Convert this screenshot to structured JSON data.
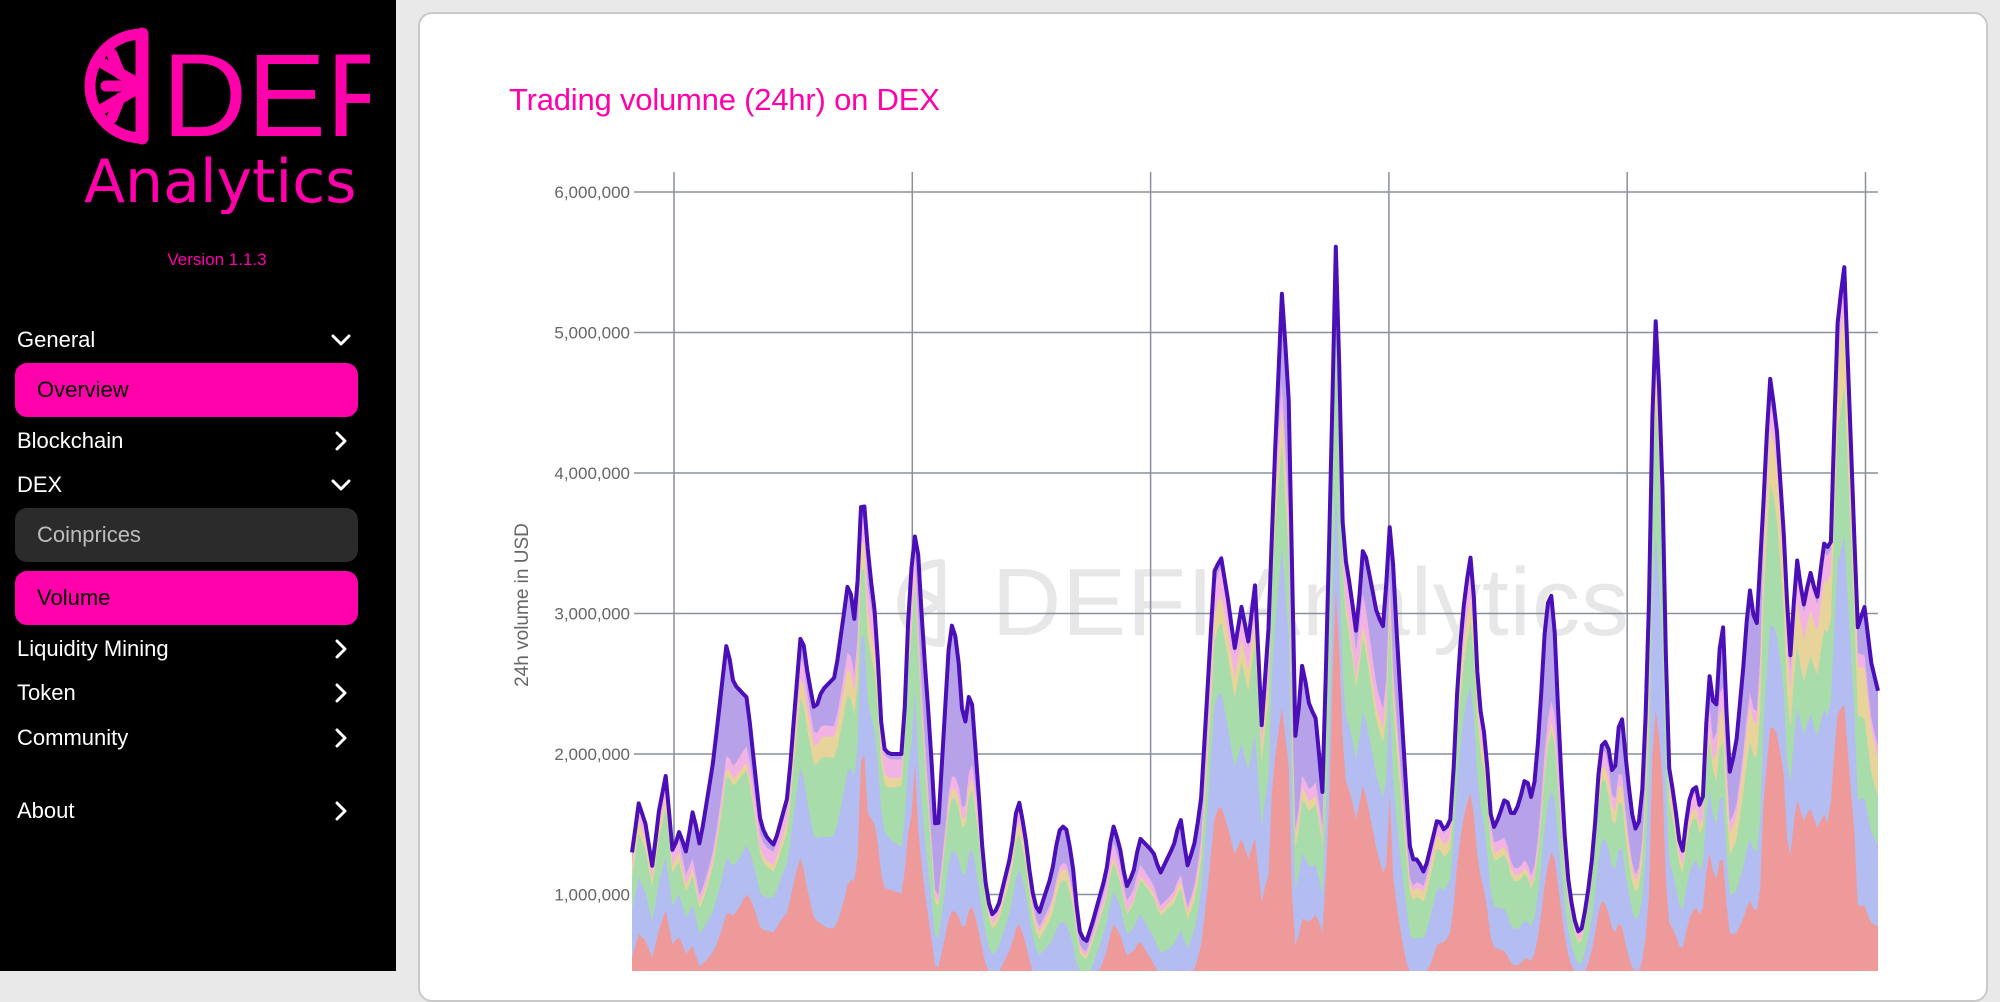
{
  "brand": {
    "logo_text_top": "DEFI",
    "logo_text_bottom": "Analytics",
    "version": "Version 1.1.3",
    "accent": "#ff00aa"
  },
  "nav": {
    "general": {
      "label": "General",
      "icon": "chevron-down-icon"
    },
    "overview": {
      "label": "Overview"
    },
    "blockchain": {
      "label": "Blockchain",
      "icon": "chevron-right-icon"
    },
    "dex": {
      "label": "DEX",
      "icon": "chevron-down-icon"
    },
    "coinprices": {
      "label": "Coinprices"
    },
    "volume": {
      "label": "Volume"
    },
    "liquidity_mining": {
      "label": "Liquidity Mining",
      "icon": "chevron-right-icon"
    },
    "token": {
      "label": "Token",
      "icon": "chevron-right-icon"
    },
    "community": {
      "label": "Community",
      "icon": "chevron-right-icon"
    },
    "about": {
      "label": "About",
      "icon": "chevron-right-icon"
    }
  },
  "watermark": "DEFI Analytics",
  "chart_data": {
    "type": "area",
    "title": "Trading volumne (24hr) on DEX",
    "xlabel": "",
    "ylabel": "24h volume in USD",
    "ylim": [
      0,
      6200000
    ],
    "yticks": [
      1000000,
      2000000,
      3000000,
      4000000,
      5000000,
      6000000
    ],
    "ytick_labels": [
      "1,000,000",
      "2,000,000",
      "3,000,000",
      "4,000,000",
      "5,000,000",
      "6,000,000"
    ],
    "x_gridlines": 6,
    "grid": true,
    "stacked": true,
    "colors": {
      "layer1": "#ef9a9a",
      "layer2": "#b3bdf2",
      "layer3": "#a8dcaa",
      "layer4": "#e8d49a",
      "layer5": "#f2b3e4",
      "layer6": "#b7a2ea",
      "total_line": "#4b0fb8"
    },
    "total_profile": [
      [
        0,
        1300000
      ],
      [
        1,
        1650000
      ],
      [
        2,
        1500000
      ],
      [
        3,
        1200000
      ],
      [
        4,
        1600000
      ],
      [
        5,
        1850000
      ],
      [
        6,
        1300000
      ],
      [
        7,
        1450000
      ],
      [
        8,
        1300000
      ],
      [
        9,
        1600000
      ],
      [
        10,
        1350000
      ],
      [
        12,
        1950000
      ],
      [
        14,
        2800000
      ],
      [
        15,
        2500000
      ],
      [
        17,
        2400000
      ],
      [
        19,
        1500000
      ],
      [
        20,
        1400000
      ],
      [
        21,
        1350000
      ],
      [
        23,
        1700000
      ],
      [
        25,
        2900000
      ],
      [
        26,
        2550000
      ],
      [
        27,
        2300000
      ],
      [
        28,
        2450000
      ],
      [
        30,
        2550000
      ],
      [
        32,
        3250000
      ],
      [
        33,
        2900000
      ],
      [
        34,
        3950000
      ],
      [
        35,
        3350000
      ],
      [
        36,
        2950000
      ],
      [
        37,
        2050000
      ],
      [
        38,
        2000000
      ],
      [
        40,
        2000000
      ],
      [
        41,
        3200000
      ],
      [
        42,
        3650000
      ],
      [
        43,
        2800000
      ],
      [
        44,
        2150000
      ],
      [
        45,
        1300000
      ],
      [
        47,
        2950000
      ],
      [
        48,
        2800000
      ],
      [
        49,
        2150000
      ],
      [
        50,
        2500000
      ],
      [
        51,
        1850000
      ],
      [
        52,
        1150000
      ],
      [
        53,
        850000
      ],
      [
        54,
        900000
      ],
      [
        56,
        1300000
      ],
      [
        57,
        1700000
      ],
      [
        58,
        1450000
      ],
      [
        59,
        1050000
      ],
      [
        60,
        850000
      ],
      [
        62,
        1150000
      ],
      [
        63,
        1450000
      ],
      [
        64,
        1500000
      ],
      [
        65,
        1250000
      ],
      [
        66,
        750000
      ],
      [
        67,
        650000
      ],
      [
        68,
        800000
      ],
      [
        70,
        1150000
      ],
      [
        71,
        1500000
      ],
      [
        72,
        1350000
      ],
      [
        73,
        1050000
      ],
      [
        74,
        1150000
      ],
      [
        75,
        1400000
      ],
      [
        77,
        1300000
      ],
      [
        78,
        1150000
      ],
      [
        80,
        1350000
      ],
      [
        81,
        1550000
      ],
      [
        82,
        1200000
      ],
      [
        83,
        1350000
      ],
      [
        84,
        1650000
      ],
      [
        86,
        3300000
      ],
      [
        87,
        3400000
      ],
      [
        88,
        3100000
      ],
      [
        89,
        2750000
      ],
      [
        90,
        3050000
      ],
      [
        91,
        2800000
      ],
      [
        92,
        3200000
      ],
      [
        93,
        2200000
      ],
      [
        94,
        2900000
      ],
      [
        95,
        4200000
      ],
      [
        96,
        5300000
      ],
      [
        97,
        4500000
      ],
      [
        98,
        2050000
      ],
      [
        99,
        2650000
      ],
      [
        100,
        2350000
      ],
      [
        101,
        2250000
      ],
      [
        102,
        1700000
      ],
      [
        103,
        3600000
      ],
      [
        104,
        5750000
      ],
      [
        105,
        3500000
      ],
      [
        106,
        3200000
      ],
      [
        107,
        2850000
      ],
      [
        108,
        3500000
      ],
      [
        109,
        3250000
      ],
      [
        110,
        3000000
      ],
      [
        111,
        2900000
      ],
      [
        112,
        3700000
      ],
      [
        113,
        2800000
      ],
      [
        114,
        2000000
      ],
      [
        115,
        1250000
      ],
      [
        116,
        1250000
      ],
      [
        117,
        1150000
      ],
      [
        118,
        1350000
      ],
      [
        119,
        1550000
      ],
      [
        120,
        1450000
      ],
      [
        121,
        1550000
      ],
      [
        122,
        2600000
      ],
      [
        123,
        3150000
      ],
      [
        124,
        3450000
      ],
      [
        125,
        2400000
      ],
      [
        126,
        2100000
      ],
      [
        127,
        1450000
      ],
      [
        128,
        1550000
      ],
      [
        129,
        1700000
      ],
      [
        130,
        1550000
      ],
      [
        131,
        1650000
      ],
      [
        132,
        1850000
      ],
      [
        133,
        1650000
      ],
      [
        134,
        2200000
      ],
      [
        135,
        3050000
      ],
      [
        136,
        3150000
      ],
      [
        137,
        2050000
      ],
      [
        138,
        1200000
      ],
      [
        139,
        850000
      ],
      [
        140,
        700000
      ],
      [
        141,
        950000
      ],
      [
        142,
        1350000
      ],
      [
        143,
        2050000
      ],
      [
        144,
        2100000
      ],
      [
        145,
        1800000
      ],
      [
        146,
        2350000
      ],
      [
        147,
        1850000
      ],
      [
        148,
        1450000
      ],
      [
        149,
        1550000
      ],
      [
        150,
        2600000
      ],
      [
        151,
        5250000
      ],
      [
        152,
        4300000
      ],
      [
        153,
        1950000
      ],
      [
        154,
        1650000
      ],
      [
        155,
        1250000
      ],
      [
        156,
        1650000
      ],
      [
        157,
        1800000
      ],
      [
        158,
        1550000
      ],
      [
        159,
        2600000
      ],
      [
        160,
        2250000
      ],
      [
        161,
        3050000
      ],
      [
        162,
        1850000
      ],
      [
        163,
        2050000
      ],
      [
        164,
        2550000
      ],
      [
        165,
        3200000
      ],
      [
        166,
        2850000
      ],
      [
        167,
        3700000
      ],
      [
        168,
        4700000
      ],
      [
        169,
        4350000
      ],
      [
        170,
        3650000
      ],
      [
        171,
        2650000
      ],
      [
        172,
        3400000
      ],
      [
        173,
        3050000
      ],
      [
        174,
        3300000
      ],
      [
        175,
        3100000
      ],
      [
        176,
        3500000
      ],
      [
        177,
        3450000
      ],
      [
        178,
        5050000
      ],
      [
        179,
        5500000
      ],
      [
        180,
        4200000
      ],
      [
        181,
        2900000
      ],
      [
        182,
        3050000
      ],
      [
        183,
        2650000
      ],
      [
        184,
        2450000
      ]
    ],
    "total_max_x": 184
  }
}
